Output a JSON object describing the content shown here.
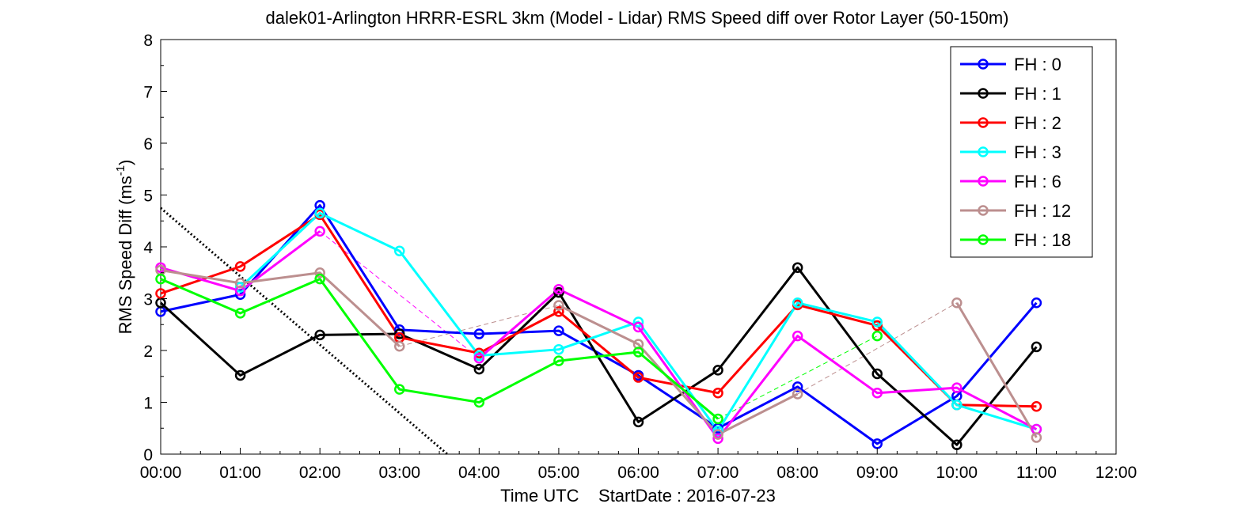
{
  "chart_data": {
    "type": "line",
    "title": "dalek01-Arlington HRRR-ESRL 3km (Model - Lidar) RMS Speed diff over Rotor Layer (50-150m)",
    "xlabel": "Time UTC    StartDate : 2016-07-23",
    "ylabel_main": "RMS Speed Diff (ms",
    "ylabel_sup": "-1",
    "ylabel_close": ")",
    "x_ticks": [
      "00:00",
      "01:00",
      "02:00",
      "03:00",
      "04:00",
      "05:00",
      "06:00",
      "07:00",
      "08:00",
      "09:00",
      "10:00",
      "11:00",
      "12:00"
    ],
    "x_range": [
      0,
      12
    ],
    "y_ticks": [
      "0",
      "1",
      "2",
      "3",
      "4",
      "5",
      "6",
      "7",
      "8"
    ],
    "y_range": [
      0,
      8
    ],
    "legend_position": "top-right",
    "series": [
      {
        "name": "FH : 0",
        "color": "#0000ff",
        "points": [
          [
            0,
            2.75
          ],
          [
            1,
            3.08
          ],
          [
            2,
            4.8
          ],
          [
            3,
            2.4
          ],
          [
            4,
            2.32
          ],
          [
            5,
            2.38
          ],
          [
            6,
            1.52
          ],
          [
            7,
            0.5
          ],
          [
            8,
            1.3
          ],
          [
            9,
            0.2
          ],
          [
            10,
            1.12
          ],
          [
            11,
            2.92
          ]
        ],
        "gaps": []
      },
      {
        "name": "FH : 1",
        "color": "#000000",
        "points": [
          [
            0,
            2.92
          ],
          [
            1,
            1.52
          ],
          [
            2,
            2.3
          ],
          [
            3,
            2.32
          ],
          [
            4,
            1.64
          ],
          [
            5,
            3.12
          ],
          [
            6,
            0.62
          ],
          [
            7,
            1.62
          ],
          [
            8,
            3.6
          ],
          [
            9,
            1.55
          ],
          [
            10,
            0.18
          ],
          [
            11,
            2.07
          ]
        ],
        "gaps": []
      },
      {
        "name": "FH : 2",
        "color": "#ff0000",
        "points": [
          [
            0,
            3.1
          ],
          [
            1,
            3.62
          ],
          [
            2,
            4.62
          ],
          [
            3,
            2.25
          ],
          [
            4,
            1.95
          ],
          [
            5,
            2.75
          ],
          [
            6,
            1.48
          ],
          [
            7,
            1.18
          ],
          [
            8,
            2.88
          ],
          [
            9,
            2.48
          ],
          [
            10,
            0.95
          ],
          [
            11,
            0.92
          ]
        ],
        "gaps": []
      },
      {
        "name": "FH : 3",
        "color": "#00ffff",
        "points": [
          [
            1,
            3.22
          ],
          [
            2,
            4.65
          ],
          [
            3,
            3.92
          ],
          [
            4,
            1.9
          ],
          [
            5,
            2.02
          ],
          [
            6,
            2.55
          ],
          [
            7,
            0.45
          ],
          [
            8,
            2.92
          ],
          [
            9,
            2.55
          ],
          [
            10,
            0.95
          ],
          [
            11,
            0.48
          ]
        ],
        "gaps": []
      },
      {
        "name": "FH : 6",
        "color": "#ff00ff",
        "points": [
          [
            0,
            3.6
          ],
          [
            1,
            3.15
          ],
          [
            2,
            4.3
          ],
          [
            4,
            1.85
          ],
          [
            5,
            3.18
          ],
          [
            6,
            2.45
          ],
          [
            7,
            0.3
          ],
          [
            8,
            2.28
          ],
          [
            9,
            1.18
          ],
          [
            10,
            1.28
          ],
          [
            11,
            0.48
          ]
        ],
        "gaps": [
          [
            2,
            4.3,
            4,
            1.85
          ]
        ]
      },
      {
        "name": "FH : 12",
        "color": "#bc8f8f",
        "points": [
          [
            0,
            3.55
          ],
          [
            1,
            3.3
          ],
          [
            2,
            3.5
          ],
          [
            3,
            2.08
          ],
          [
            5,
            2.87
          ],
          [
            6,
            2.12
          ],
          [
            7,
            0.38
          ],
          [
            8,
            1.16
          ],
          [
            10,
            2.92
          ],
          [
            11,
            0.32
          ]
        ],
        "gaps": [
          [
            3,
            2.08,
            5,
            2.87
          ],
          [
            8,
            1.16,
            10,
            2.92
          ]
        ]
      },
      {
        "name": "FH : 18",
        "color": "#00ff00",
        "points": [
          [
            0,
            3.38
          ],
          [
            1,
            2.72
          ],
          [
            2,
            3.38
          ],
          [
            3,
            1.25
          ],
          [
            4,
            1.0
          ],
          [
            5,
            1.8
          ],
          [
            6,
            1.97
          ],
          [
            7,
            0.68
          ],
          [
            9,
            2.28
          ]
        ],
        "gaps": [
          [
            7,
            0.68,
            9,
            2.28
          ]
        ]
      }
    ],
    "reference_line": {
      "style": "dotted",
      "color": "#000000",
      "points": [
        [
          0,
          4.75
        ],
        [
          3.6,
          0
        ]
      ]
    }
  }
}
